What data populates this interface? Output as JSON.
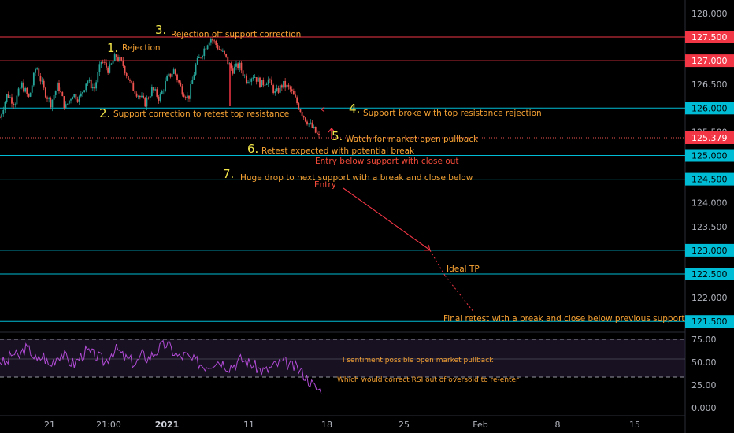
{
  "chart_data": [
    {
      "type": "candlestick",
      "y_ticks": [
        "128.000",
        "127.500",
        "127.000",
        "126.500",
        "126.000",
        "125.500",
        "125.000",
        "124.500",
        "124.000",
        "123.500",
        "123.000",
        "122.500",
        "122.000",
        "121.500"
      ],
      "ylim": [
        121.3,
        128.25
      ],
      "x_ticks": [
        "21",
        "21:00",
        "2021",
        "11",
        "18",
        "25",
        "Feb",
        "8",
        "15"
      ],
      "current_price": "125.379",
      "colors": {
        "red_line": "#f23645",
        "cyan_line": "#00bcd4",
        "up": "#26a69a",
        "down": "#ef5350",
        "annotation": "#f7a334",
        "number": "#f0e44a",
        "arrow": "#f23645"
      },
      "resistance_levels": [
        {
          "price": 127.5,
          "label": "127.500",
          "color": "#f23645"
        },
        {
          "price": 127.0,
          "label": "127.000",
          "color": "#f23645"
        }
      ],
      "support_levels": [
        {
          "price": 126.0,
          "label": "126.000",
          "color": "#00bcd4"
        },
        {
          "price": 125.0,
          "label": "125.000",
          "color": "#00bcd4"
        },
        {
          "price": 124.5,
          "label": "124.500",
          "color": "#00bcd4"
        },
        {
          "price": 123.0,
          "label": "123.000",
          "color": "#00bcd4"
        },
        {
          "price": 122.5,
          "label": "122.500",
          "color": "#00bcd4"
        },
        {
          "price": 121.5,
          "label": "121.500",
          "color": "#00bcd4"
        }
      ],
      "price_path": [
        125.8,
        126.3,
        126.1,
        126.5,
        126.2,
        126.9,
        126.4,
        126.1,
        126.5,
        126.0,
        126.3,
        126.2,
        126.6,
        126.4,
        127.0,
        126.8,
        127.1,
        126.9,
        126.5,
        126.3,
        126.1,
        126.4,
        126.2,
        126.6,
        126.8,
        126.4,
        126.2,
        126.9,
        127.2,
        127.5,
        127.3,
        127.1,
        126.8,
        126.9,
        126.6,
        126.7,
        126.5,
        126.6,
        126.3,
        126.5,
        126.4,
        126.1,
        125.8,
        125.6,
        125.38
      ],
      "annotations": [
        {
          "num": "1.",
          "text": "Rejection"
        },
        {
          "num": "2.",
          "text": "Support correction to retest top resistance"
        },
        {
          "num": "3.",
          "text": "Rejection off support correction"
        },
        {
          "num": "4.",
          "text": "Support broke with top resistance rejection"
        },
        {
          "num": "5.",
          "text": "Watch for market open pullback"
        },
        {
          "num": "6.",
          "text": "Retest expected with potential break"
        },
        {
          "num": "",
          "text": "Entry below support with close out"
        },
        {
          "num": "7.",
          "text": "Huge drop to next support with a break and close below"
        },
        {
          "num": "",
          "text": "Entry"
        },
        {
          "num": "",
          "text": "Ideal TP"
        },
        {
          "num": "",
          "text": "Final retest with a break and close below previous support"
        }
      ]
    },
    {
      "type": "line",
      "y_ticks": [
        "75.00",
        "50.00",
        "25.00",
        "0.000"
      ],
      "ylim": [
        -5,
        82
      ],
      "bands": [
        70,
        30
      ],
      "series": [
        {
          "values": [
            52,
            48,
            60,
            55,
            65,
            62,
            50,
            58,
            45,
            55,
            60,
            52,
            48,
            56,
            62,
            58,
            55,
            50,
            60,
            64,
            55,
            52,
            48,
            58,
            54,
            60,
            66,
            70,
            62,
            55,
            58,
            52,
            50,
            46,
            48,
            52,
            50,
            45,
            48,
            53,
            50,
            47,
            42,
            40,
            45,
            48,
            50,
            46,
            44,
            38,
            30,
            22,
            18
          ]
        }
      ],
      "annotations": [
        {
          "text": "l sentiment possible open market pullback"
        },
        {
          "text": "Which would correct RSI out of oversold to re-enter"
        }
      ]
    }
  ]
}
